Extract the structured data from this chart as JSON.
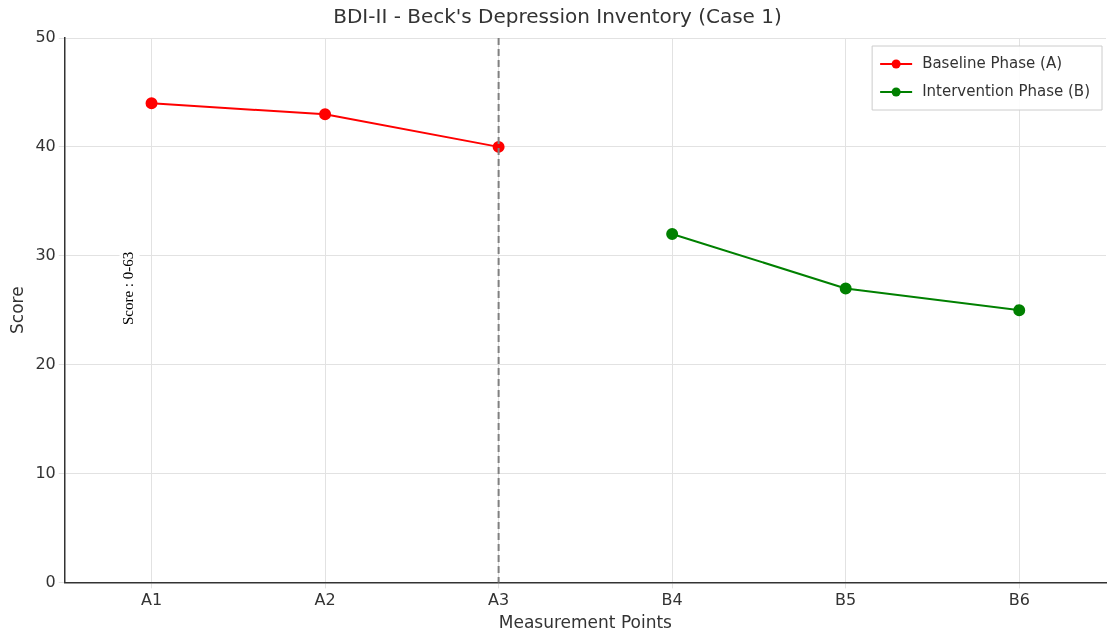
{
  "chart_data": {
    "type": "line",
    "title": "BDI-II - Beck's Depression Inventory (Case 1)",
    "xlabel": "Measurement Points",
    "ylabel": "Score",
    "categories": [
      "A1",
      "A2",
      "A3",
      "B4",
      "B5",
      "B6"
    ],
    "series": [
      {
        "name": "Baseline Phase (A)",
        "color": "#ff0000",
        "values": [
          44,
          43,
          40,
          null,
          null,
          null
        ]
      },
      {
        "name": "Intervention Phase (B)",
        "color": "#008000",
        "values": [
          null,
          null,
          null,
          32,
          27,
          25
        ]
      }
    ],
    "ylim": [
      0,
      50
    ],
    "yticks": [
      0,
      10,
      20,
      30,
      40,
      50
    ],
    "ref_lines": [
      {
        "axis": "x",
        "value": "A3",
        "color": "#808080",
        "line_style": "dashed"
      }
    ],
    "annotations": [
      "Score : 0-63"
    ],
    "grid": true,
    "legend": "top right",
    "marker": "circle",
    "line_style": "solid"
  }
}
